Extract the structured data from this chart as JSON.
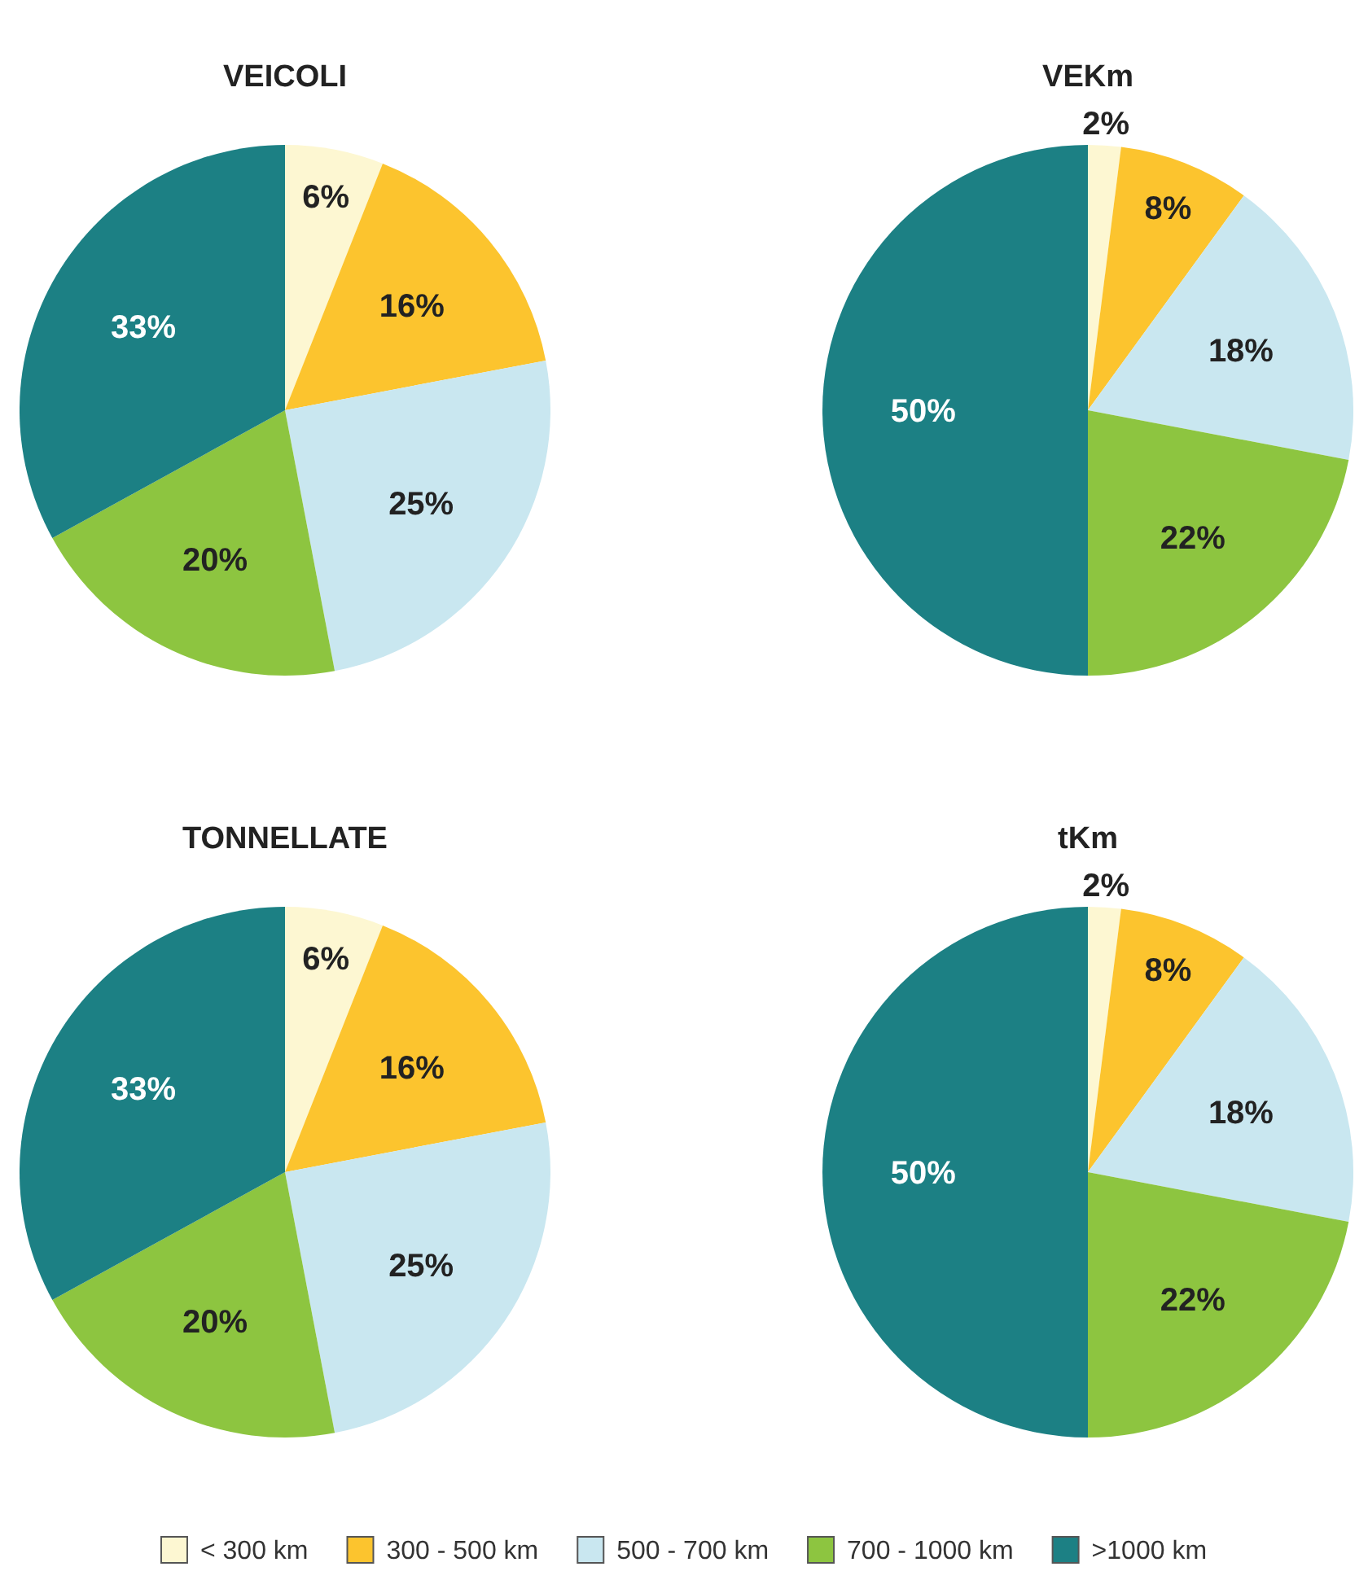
{
  "chart_data": [
    {
      "type": "pie",
      "title": "VEICOLI",
      "categories": [
        "< 300 km",
        "300 - 500 km",
        "500 - 700 km",
        "700 - 1000 km",
        ">1000 km"
      ],
      "values": [
        6,
        16,
        25,
        20,
        33
      ],
      "value_labels": [
        "6%",
        "16%",
        "25%",
        "20%",
        "33%"
      ],
      "colors": [
        "#fdf7d2",
        "#fcc42e",
        "#c9e7f0",
        "#8dc540",
        "#1c8084"
      ],
      "legend": "bottom"
    },
    {
      "type": "pie",
      "title": "VEKm",
      "categories": [
        null,
        null,
        null,
        null,
        null
      ],
      "values": [
        2,
        8,
        18,
        22,
        50
      ],
      "value_labels": [
        "2%",
        "8%",
        "18%",
        "22%",
        "50%"
      ],
      "colors": [
        "#fdf7d2",
        "#fcc42e",
        "#c9e7f0",
        "#8dc540",
        "#1c8084"
      ]
    },
    {
      "type": "pie",
      "title": "TONNELLATE",
      "categories": [
        null,
        null,
        null,
        null,
        null
      ],
      "values": [
        6,
        16,
        25,
        20,
        33
      ],
      "value_labels": [
        "6%",
        "16%",
        "25%",
        "20%",
        "33%"
      ],
      "colors": [
        "#fdf7d2",
        "#fcc42e",
        "#c9e7f0",
        "#8dc540",
        "#1c8084"
      ]
    },
    {
      "type": "pie",
      "title": "tKm",
      "categories": [
        null,
        null,
        null,
        null,
        null
      ],
      "values": [
        2,
        8,
        18,
        22,
        50
      ],
      "value_labels": [
        "2%",
        "8%",
        "18%",
        "22%",
        "50%"
      ],
      "colors": [
        "#fdf7d2",
        "#fcc42e",
        "#c9e7f0",
        "#8dc540",
        "#1c8084"
      ]
    }
  ]
}
